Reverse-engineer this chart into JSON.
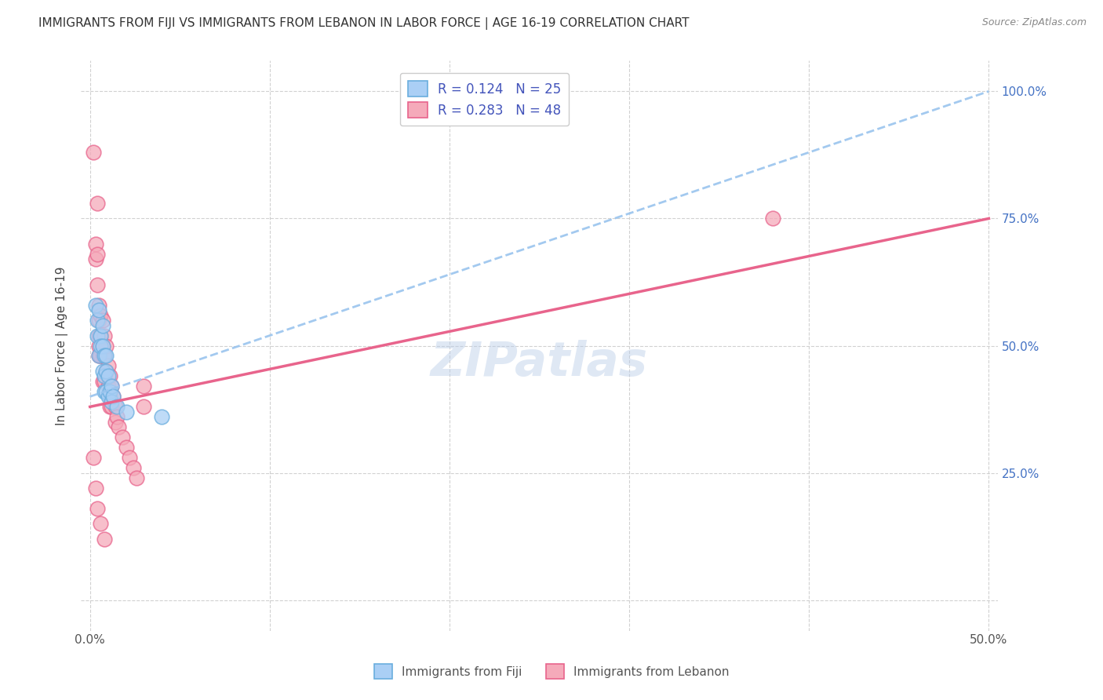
{
  "title": "IMMIGRANTS FROM FIJI VS IMMIGRANTS FROM LEBANON IN LABOR FORCE | AGE 16-19 CORRELATION CHART",
  "source": "Source: ZipAtlas.com",
  "ylabel": "In Labor Force | Age 16-19",
  "fiji_R": 0.124,
  "fiji_N": 25,
  "lebanon_R": 0.283,
  "lebanon_N": 48,
  "fiji_color": "#aacff5",
  "lebanon_color": "#f5aaba",
  "fiji_edge_color": "#6aaede",
  "lebanon_edge_color": "#e8648c",
  "fiji_line_color": "#99c4ee",
  "lebanon_line_color": "#e8648c",
  "legend_label_fiji": "Immigrants from Fiji",
  "legend_label_lebanon": "Immigrants from Lebanon",
  "fiji_scatter_x": [
    0.003,
    0.004,
    0.004,
    0.005,
    0.005,
    0.006,
    0.006,
    0.007,
    0.007,
    0.007,
    0.008,
    0.008,
    0.008,
    0.009,
    0.009,
    0.009,
    0.01,
    0.01,
    0.011,
    0.012,
    0.012,
    0.013,
    0.015,
    0.02,
    0.04
  ],
  "fiji_scatter_y": [
    0.58,
    0.55,
    0.52,
    0.57,
    0.48,
    0.52,
    0.5,
    0.54,
    0.5,
    0.45,
    0.48,
    0.44,
    0.41,
    0.48,
    0.45,
    0.41,
    0.44,
    0.4,
    0.41,
    0.42,
    0.39,
    0.4,
    0.38,
    0.37,
    0.36
  ],
  "lebanon_scatter_x": [
    0.002,
    0.003,
    0.003,
    0.004,
    0.004,
    0.004,
    0.005,
    0.005,
    0.005,
    0.005,
    0.005,
    0.006,
    0.006,
    0.006,
    0.007,
    0.007,
    0.007,
    0.007,
    0.008,
    0.008,
    0.008,
    0.009,
    0.009,
    0.01,
    0.01,
    0.011,
    0.011,
    0.011,
    0.012,
    0.012,
    0.013,
    0.014,
    0.014,
    0.015,
    0.016,
    0.018,
    0.02,
    0.022,
    0.024,
    0.026,
    0.03,
    0.03,
    0.38,
    0.002,
    0.003,
    0.004,
    0.006,
    0.008
  ],
  "lebanon_scatter_y": [
    0.88,
    0.7,
    0.67,
    0.78,
    0.68,
    0.62,
    0.58,
    0.55,
    0.52,
    0.5,
    0.48,
    0.56,
    0.52,
    0.48,
    0.55,
    0.5,
    0.48,
    0.43,
    0.52,
    0.48,
    0.43,
    0.5,
    0.45,
    0.46,
    0.42,
    0.44,
    0.4,
    0.38,
    0.42,
    0.38,
    0.4,
    0.38,
    0.35,
    0.36,
    0.34,
    0.32,
    0.3,
    0.28,
    0.26,
    0.24,
    0.42,
    0.38,
    0.75,
    0.28,
    0.22,
    0.18,
    0.15,
    0.12
  ]
}
